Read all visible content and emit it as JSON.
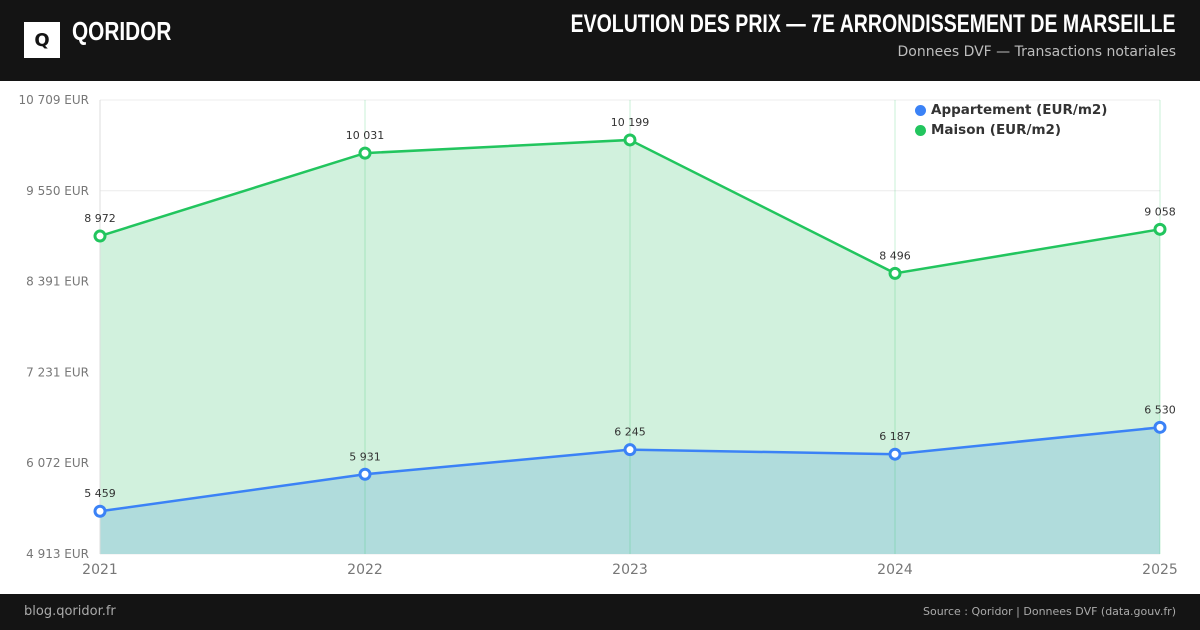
{
  "header": {
    "logo_letter": "Q",
    "brand": "QORIDOR",
    "title": "EVOLUTION DES PRIX — 7E ARRONDISSEMENT DE MARSEILLE",
    "subtitle": "Donnees DVF — Transactions notariales"
  },
  "footer": {
    "left": "blog.qoridor.fr",
    "right": "Source : Qoridor | Donnees DVF (data.gouv.fr)"
  },
  "chart_data": {
    "type": "area",
    "title": "EVOLUTION DES PRIX — 7E ARRONDISSEMENT DE MARSEILLE",
    "categories": [
      "2021",
      "2022",
      "2023",
      "2024",
      "2025"
    ],
    "ylim": [
      4913,
      10709
    ],
    "yticks": [
      4913,
      6072,
      7231,
      8391,
      9550,
      10709
    ],
    "ytick_labels": [
      "4 913 EUR",
      "6 072 EUR",
      "7 231 EUR",
      "8 391 EUR",
      "9 550 EUR",
      "10 709 EUR"
    ],
    "legend_position": "top-right",
    "grid": true,
    "series": [
      {
        "name": "Appartement (EUR/m2)",
        "color": "#3b82f6",
        "fill": "#b0dcdc",
        "values": [
          5459,
          5931,
          6245,
          6187,
          6530
        ],
        "labels": [
          "5 459",
          "5 931",
          "6 245",
          "6 187",
          "6 530"
        ]
      },
      {
        "name": "Maison (EUR/m2)",
        "color": "#22c55e",
        "fill": "#d1f1dd",
        "values": [
          8972,
          10031,
          10199,
          8496,
          9058
        ],
        "labels": [
          "8 972",
          "10 031",
          "10 199",
          "8 496",
          "9 058"
        ]
      }
    ]
  }
}
